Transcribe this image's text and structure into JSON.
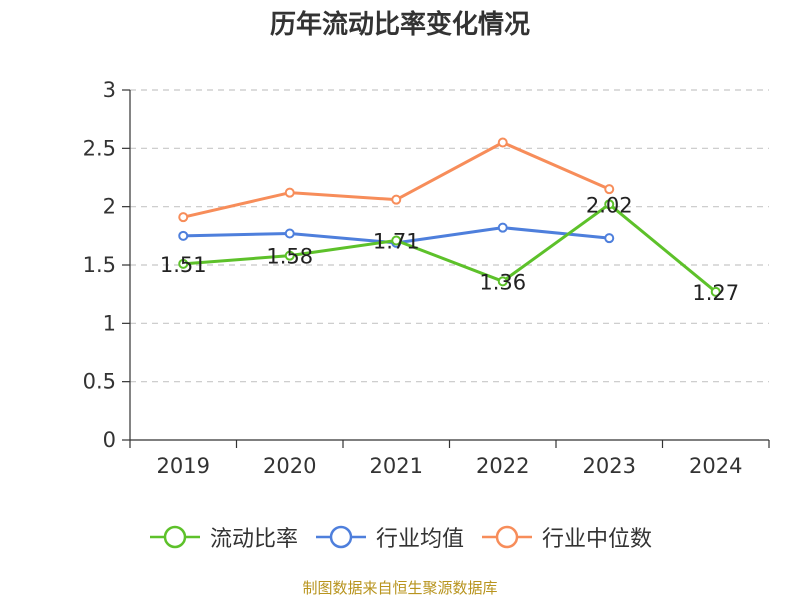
{
  "chart_data": {
    "type": "line",
    "title": "历年流动比率变化情况",
    "categories": [
      "2019",
      "2020",
      "2021",
      "2022",
      "2023",
      "2024"
    ],
    "ylim": [
      0,
      3
    ],
    "yticks": [
      "0",
      "0.5",
      "1",
      "1.5",
      "2",
      "2.5",
      "3"
    ],
    "grid": true,
    "legend_position": "bottom",
    "series": [
      {
        "name": "流动比率",
        "color": "#5dc12a",
        "values": [
          1.51,
          1.58,
          1.71,
          1.36,
          2.02,
          1.27
        ],
        "labels": [
          "1.51",
          "1.58",
          "1.71",
          "1.36",
          "2.02",
          "1.27"
        ]
      },
      {
        "name": "行业均值",
        "color": "#4e7fdc",
        "values": [
          1.75,
          1.77,
          1.69,
          1.82,
          1.73,
          null
        ]
      },
      {
        "name": "行业中位数",
        "color": "#f78d5a",
        "values": [
          1.91,
          2.12,
          2.06,
          2.55,
          2.15,
          null
        ]
      }
    ]
  },
  "source": "制图数据来自恒生聚源数据库"
}
